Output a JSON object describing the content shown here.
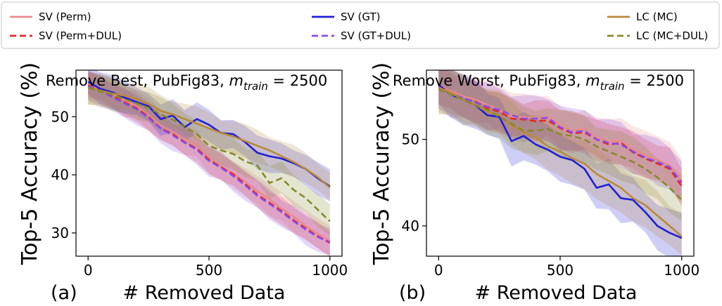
{
  "legend": {
    "items": [
      {
        "label": "SV (Perm)",
        "color": "#e88a8a",
        "dash": false
      },
      {
        "label": "SV (GT)",
        "color": "#1f1fd6",
        "dash": false
      },
      {
        "label": "LC (MC)",
        "color": "#b8893a",
        "dash": false
      },
      {
        "label": "SV (Perm+DUL)",
        "color": "#e82727",
        "dash": true
      },
      {
        "label": "SV (GT+DUL)",
        "color": "#8a4ae8",
        "dash": true
      },
      {
        "label": "LC (MC+DUL)",
        "color": "#858a2a",
        "dash": true
      }
    ]
  },
  "chart_data": [
    {
      "type": "line",
      "panel_label": "(a)",
      "title_prefix": "Remove Best, PubFig83, ",
      "title_math_base": "m",
      "title_math_sub": "train",
      "title_math_rest": " = 2500",
      "xlabel": "# Removed Data",
      "ylabel": "Top-5 Accuracy (%)",
      "xlim": [
        -50,
        1050
      ],
      "ylim": [
        26,
        58
      ],
      "xticks": [
        0,
        500,
        1000
      ],
      "yticks": [
        30,
        40,
        50
      ],
      "x": [
        0,
        50,
        100,
        150,
        200,
        250,
        300,
        350,
        400,
        450,
        500,
        550,
        600,
        650,
        700,
        750,
        800,
        850,
        900,
        950,
        1000
      ],
      "series": [
        {
          "name": "SV (Perm)",
          "color": "#e88a8a",
          "dash": false,
          "values": [
            55.5,
            54.8,
            53.9,
            52.8,
            51.8,
            50.3,
            48.5,
            47.4,
            46.2,
            45.2,
            43.0,
            41.4,
            40.2,
            38.8,
            37.2,
            35.8,
            34.2,
            32.8,
            31.2,
            29.8,
            28.6
          ]
        },
        {
          "name": "SV (Perm+DUL)",
          "color": "#e82727",
          "dash": true,
          "values": [
            55.4,
            54.6,
            53.6,
            52.5,
            51.5,
            50.0,
            48.0,
            47.0,
            45.6,
            44.5,
            42.6,
            41.3,
            40.1,
            38.4,
            36.6,
            35.2,
            33.8,
            32.2,
            30.8,
            29.4,
            28.3
          ]
        },
        {
          "name": "SV (GT)",
          "color": "#1f1fd6",
          "dash": false,
          "values": [
            56.0,
            54.8,
            54.2,
            53.3,
            52.5,
            51.8,
            49.6,
            50.2,
            48.2,
            49.6,
            48.6,
            47.2,
            47.0,
            45.6,
            43.8,
            43.2,
            42.8,
            42.0,
            41.0,
            39.4,
            38.0
          ]
        },
        {
          "name": "SV (GT+DUL)",
          "color": "#8a4ae8",
          "dash": true,
          "values": [
            55.3,
            54.4,
            53.4,
            52.3,
            51.3,
            49.8,
            48.0,
            46.8,
            45.5,
            44.3,
            42.4,
            41.2,
            39.8,
            38.2,
            36.4,
            35.0,
            33.6,
            32.0,
            30.6,
            29.3,
            28.4
          ]
        },
        {
          "name": "LC (MC)",
          "color": "#b8893a",
          "dash": false,
          "values": [
            55.0,
            54.5,
            54.0,
            53.6,
            53.0,
            52.2,
            51.0,
            50.4,
            49.6,
            48.8,
            48.0,
            47.2,
            46.6,
            45.8,
            45.0,
            44.2,
            43.2,
            42.2,
            41.0,
            39.6,
            37.8
          ]
        },
        {
          "name": "LC (MC+DUL)",
          "color": "#858a2a",
          "dash": true,
          "values": [
            55.0,
            54.3,
            53.8,
            53.0,
            52.3,
            51.5,
            50.4,
            49.5,
            48.2,
            47.0,
            45.0,
            44.2,
            43.6,
            42.3,
            41.6,
            38.6,
            39.4,
            37.4,
            36.0,
            34.0,
            32.0
          ]
        }
      ]
    },
    {
      "type": "line",
      "panel_label": "(b)",
      "title_prefix": "Remove Worst, PubFig83, ",
      "title_math_base": "m",
      "title_math_sub": "train",
      "title_math_rest": " = 2500",
      "xlabel": "# Removed Data",
      "ylabel": "Top-5 Accuracy (%)",
      "xlim": [
        -50,
        1050
      ],
      "ylim": [
        36.5,
        58
      ],
      "xticks": [
        0,
        500,
        1000
      ],
      "yticks": [
        40,
        50
      ],
      "x": [
        0,
        50,
        100,
        150,
        200,
        250,
        300,
        350,
        400,
        450,
        500,
        550,
        600,
        650,
        700,
        750,
        800,
        850,
        900,
        950,
        1000
      ],
      "series": [
        {
          "name": "SV (Perm)",
          "color": "#e88a8a",
          "dash": false,
          "values": [
            56.2,
            55.6,
            55.0,
            54.6,
            54.0,
            53.4,
            52.6,
            52.6,
            52.4,
            52.6,
            51.6,
            51.0,
            51.2,
            50.2,
            49.8,
            49.8,
            48.8,
            48.2,
            47.6,
            47.0,
            45.2
          ]
        },
        {
          "name": "SV (Perm+DUL)",
          "color": "#e82727",
          "dash": true,
          "values": [
            56.1,
            55.4,
            54.7,
            54.4,
            53.6,
            53.2,
            52.4,
            52.3,
            52.1,
            52.2,
            51.3,
            50.7,
            50.8,
            50.0,
            49.4,
            49.6,
            48.5,
            47.8,
            47.2,
            46.6,
            44.6
          ]
        },
        {
          "name": "SV (GT)",
          "color": "#1f1fd6",
          "dash": false,
          "values": [
            56.3,
            55.2,
            54.6,
            54.0,
            52.8,
            52.6,
            49.8,
            50.4,
            49.4,
            48.8,
            48.0,
            47.6,
            46.6,
            44.4,
            44.8,
            43.2,
            43.0,
            41.6,
            40.0,
            39.2,
            38.6
          ]
        },
        {
          "name": "SV (GT+DUL)",
          "color": "#8a4ae8",
          "dash": true,
          "values": [
            56.0,
            55.3,
            54.8,
            54.3,
            53.8,
            53.4,
            52.8,
            52.4,
            52.4,
            52.5,
            51.4,
            50.8,
            51.0,
            50.0,
            49.6,
            49.4,
            48.6,
            47.9,
            47.4,
            46.8,
            45.0
          ]
        },
        {
          "name": "LC (MC)",
          "color": "#b8893a",
          "dash": false,
          "values": [
            56.0,
            55.4,
            54.6,
            54.0,
            53.2,
            52.8,
            51.6,
            50.8,
            50.2,
            49.2,
            48.6,
            47.8,
            47.2,
            46.0,
            45.2,
            44.4,
            43.2,
            42.4,
            41.2,
            40.0,
            38.8
          ]
        },
        {
          "name": "LC (MC+DUL)",
          "color": "#858a2a",
          "dash": true,
          "values": [
            55.8,
            55.2,
            54.6,
            54.0,
            53.4,
            52.6,
            51.8,
            51.0,
            51.0,
            51.2,
            50.6,
            50.4,
            50.0,
            49.2,
            48.6,
            48.0,
            47.4,
            46.6,
            45.6,
            44.4,
            43.0
          ]
        }
      ]
    }
  ]
}
